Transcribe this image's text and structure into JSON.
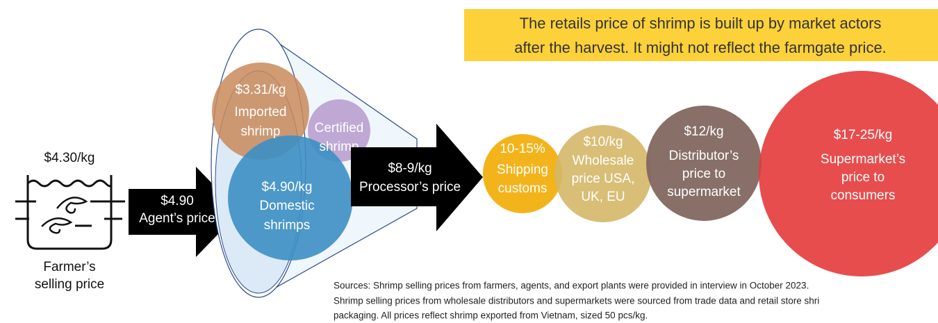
{
  "callout": {
    "lines": [
      "The retails price of shrimp is built up by market actors",
      "after the harvest. It might not reflect the farmgate price."
    ]
  },
  "farmer": {
    "price": "$4.30/kg",
    "label": [
      "Farmer’s",
      "selling price"
    ]
  },
  "agent": {
    "price": "$4.90",
    "label": "Agent’s price"
  },
  "sources": {
    "imported": [
      "$3.31/kg",
      "Imported",
      "shrimp"
    ],
    "certified": [
      "Certified",
      "shrimp"
    ],
    "domestic": [
      "$4.90/kg",
      "Domestic",
      "shrimps"
    ]
  },
  "processor": {
    "price": "$8-9/kg",
    "label": "Processor’s price"
  },
  "chain": {
    "shipping": [
      "10-15%",
      "Shipping",
      "customs"
    ],
    "wholesale": [
      "$10/kg",
      "Wholesale",
      "price USA,",
      "UK, EU"
    ],
    "distributor": [
      "$12/kg",
      "Distributor’s",
      "price to",
      "supermarket"
    ],
    "supermarket": [
      "$17-25/kg",
      "Supermarket’s",
      "price to",
      "consumers"
    ]
  },
  "note": {
    "lines": [
      "Sources: Shrimp selling prices from farmers, agents, and export plants were provided in interview in October 2023.",
      "Shrimp selling prices from wholesale distributors and supermarkets were sourced from trade data and retail store shri",
      "packaging. All prices reflect shrimp exported from Vietnam, sized 50 pcs/kg."
    ]
  }
}
